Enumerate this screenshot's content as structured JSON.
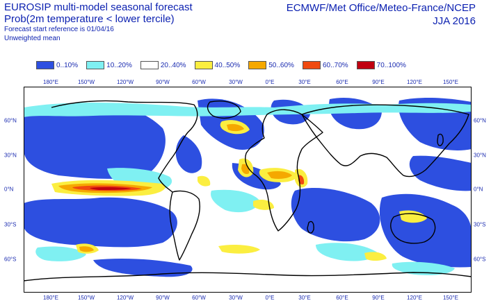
{
  "header": {
    "title_line1": "EUROSIP multi-model seasonal forecast",
    "title_line2": "Prob(2m temperature < lower tercile)",
    "subtitle_line1": "Forecast start reference is 01/04/16",
    "subtitle_line2": "Unweighted mean",
    "source": "ECMWF/Met Office/Meteo-France/NCEP",
    "season": "JJA 2016"
  },
  "legend": [
    {
      "label": "0..10%",
      "color": "#2d4fe0"
    },
    {
      "label": "10..20%",
      "color": "#7ff0f2"
    },
    {
      "label": "20..40%",
      "color": "#ffffff"
    },
    {
      "label": "40..50%",
      "color": "#fbee40"
    },
    {
      "label": "50..60%",
      "color": "#f5a800"
    },
    {
      "label": "60..70%",
      "color": "#f04a10"
    },
    {
      "label": "70..100%",
      "color": "#c00010"
    }
  ],
  "map": {
    "lon_labels": [
      "180°E",
      "150°W",
      "120°W",
      "90°W",
      "60°W",
      "30°W",
      "0°E",
      "30°E",
      "60°E",
      "90°E",
      "120°E",
      "150°E"
    ],
    "lat_labels": [
      "60°N",
      "30°N",
      "0°N",
      "30°S",
      "60°S"
    ]
  }
}
